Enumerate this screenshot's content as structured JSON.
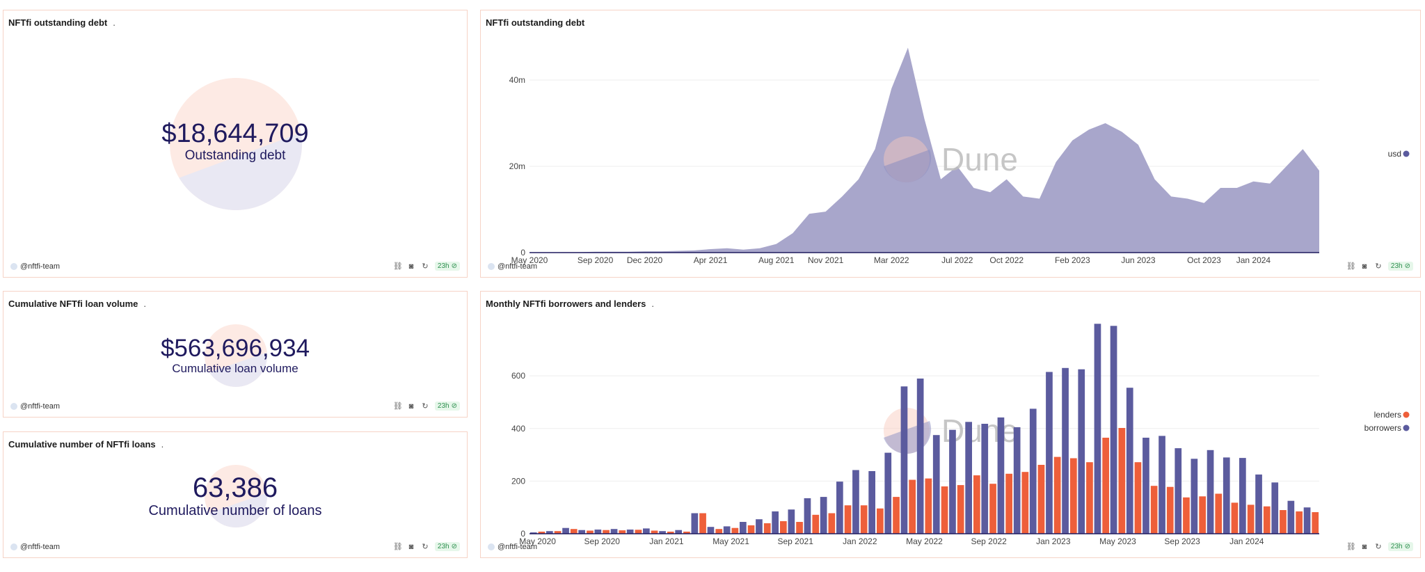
{
  "author": "@nftfi-team",
  "age": "23h",
  "colors": {
    "borrowers": "#5b5b9e",
    "lenders": "#ee5f3a",
    "area": "#a8a6cb",
    "counter": "#1f1a5e"
  },
  "counters": [
    {
      "title": "NFTfi outstanding debt",
      "dot": ".",
      "value": "$18,644,709",
      "label": "Outstanding debt"
    },
    {
      "title": "Cumulative NFTfi loan volume",
      "dot": ".",
      "value": "$563,696,934",
      "label": "Cumulative loan volume"
    },
    {
      "title": "Cumulative number of NFTfi loans",
      "dot": ".",
      "value": "63,386",
      "label": "Cumulative number of loans"
    }
  ],
  "area_chart": {
    "title": "NFTfi outstanding debt",
    "watermark": "Dune"
  },
  "bar_chart": {
    "title": "Monthly NFTfi borrowers and lenders",
    "dot": ".",
    "watermark": "Dune"
  },
  "chart_data": [
    {
      "type": "area",
      "title": "NFTfi outstanding debt",
      "legend": "right",
      "series": [
        {
          "name": "usd"
        }
      ],
      "ylim": [
        0,
        50000000
      ],
      "y_ticks": [
        {
          "value": 0,
          "label": "0"
        },
        {
          "value": 20000000,
          "label": "20m"
        },
        {
          "value": 40000000,
          "label": "40m"
        }
      ],
      "x_tick_labels": [
        "May 2020",
        "Sep 2020",
        "Dec 2020",
        "Apr 2021",
        "Aug 2021",
        "Nov 2021",
        "Mar 2022",
        "Jul 2022",
        "Oct 2022",
        "Feb 2023",
        "Jun 2023",
        "Oct 2023",
        "Jan 2024"
      ],
      "x": [
        "2020-05",
        "2020-06",
        "2020-07",
        "2020-08",
        "2020-09",
        "2020-10",
        "2020-11",
        "2020-12",
        "2021-01",
        "2021-02",
        "2021-03",
        "2021-04",
        "2021-05",
        "2021-06",
        "2021-07",
        "2021-08",
        "2021-09",
        "2021-10",
        "2021-11",
        "2021-12",
        "2022-01",
        "2022-02",
        "2022-03",
        "2022-04",
        "2022-05",
        "2022-06",
        "2022-07",
        "2022-08",
        "2022-09",
        "2022-10",
        "2022-11",
        "2022-12",
        "2023-01",
        "2023-02",
        "2023-03",
        "2023-04",
        "2023-05",
        "2023-06",
        "2023-07",
        "2023-08",
        "2023-09",
        "2023-10",
        "2023-11",
        "2023-12",
        "2024-01",
        "2024-02",
        "2024-03",
        "2024-04",
        "2024-05"
      ],
      "values": [
        0,
        50000,
        100000,
        100000,
        200000,
        200000,
        200000,
        300000,
        300000,
        400000,
        500000,
        800000,
        1000000,
        700000,
        1000000,
        2000000,
        4500000,
        9000000,
        9500000,
        13000000,
        17000000,
        24000000,
        38000000,
        47500000,
        31000000,
        17000000,
        20000000,
        15000000,
        14000000,
        17000000,
        13000000,
        12500000,
        21000000,
        26000000,
        28500000,
        30000000,
        28000000,
        25000000,
        17000000,
        13000000,
        12500000,
        11500000,
        15000000,
        15000000,
        16500000,
        16000000,
        20000000,
        24000000,
        19000000
      ]
    },
    {
      "type": "bar",
      "title": "Monthly NFTfi borrowers and lenders",
      "legend": "right",
      "ylim": [
        0,
        820
      ],
      "y_ticks": [
        {
          "value": 0,
          "label": "0"
        },
        {
          "value": 200,
          "label": "200"
        },
        {
          "value": 400,
          "label": "400"
        },
        {
          "value": 600,
          "label": "600"
        }
      ],
      "x_tick_labels": [
        "May 2020",
        "Sep 2020",
        "Jan 2021",
        "May 2021",
        "Sep 2021",
        "Jan 2022",
        "May 2022",
        "Sep 2022",
        "Jan 2023",
        "May 2023",
        "Sep 2023",
        "Jan 2024"
      ],
      "categories": [
        "2020-05",
        "2020-06",
        "2020-07",
        "2020-08",
        "2020-09",
        "2020-10",
        "2020-11",
        "2020-12",
        "2021-01",
        "2021-02",
        "2021-03",
        "2021-04",
        "2021-05",
        "2021-06",
        "2021-07",
        "2021-08",
        "2021-09",
        "2021-10",
        "2021-11",
        "2021-12",
        "2022-01",
        "2022-02",
        "2022-03",
        "2022-04",
        "2022-05",
        "2022-06",
        "2022-07",
        "2022-08",
        "2022-09",
        "2022-10",
        "2022-11",
        "2022-12",
        "2023-01",
        "2023-02",
        "2023-03",
        "2023-04",
        "2023-05",
        "2023-06",
        "2023-07",
        "2023-08",
        "2023-09",
        "2023-10",
        "2023-11",
        "2023-12",
        "2024-01",
        "2024-02",
        "2024-03",
        "2024-04",
        "2024-05"
      ],
      "series": [
        {
          "name": "lenders",
          "values": [
            8,
            10,
            18,
            12,
            14,
            13,
            15,
            12,
            8,
            8,
            78,
            18,
            22,
            32,
            40,
            48,
            45,
            72,
            78,
            108,
            108,
            96,
            140,
            205,
            210,
            180,
            185,
            222,
            190,
            228,
            235,
            262,
            292,
            287,
            272,
            365,
            402,
            272,
            182,
            178,
            138,
            142,
            152,
            118,
            110,
            104,
            90,
            85,
            82
          ]
        },
        {
          "name": "borrowers",
          "values": [
            5,
            10,
            22,
            14,
            16,
            18,
            16,
            20,
            10,
            14,
            78,
            26,
            28,
            45,
            55,
            85,
            92,
            135,
            140,
            198,
            242,
            238,
            308,
            560,
            590,
            375,
            395,
            425,
            418,
            442,
            405,
            475,
            615,
            630,
            625,
            798,
            790,
            555,
            365,
            372,
            325,
            285,
            318,
            290,
            288,
            225,
            195,
            125,
            100
          ]
        }
      ]
    }
  ]
}
